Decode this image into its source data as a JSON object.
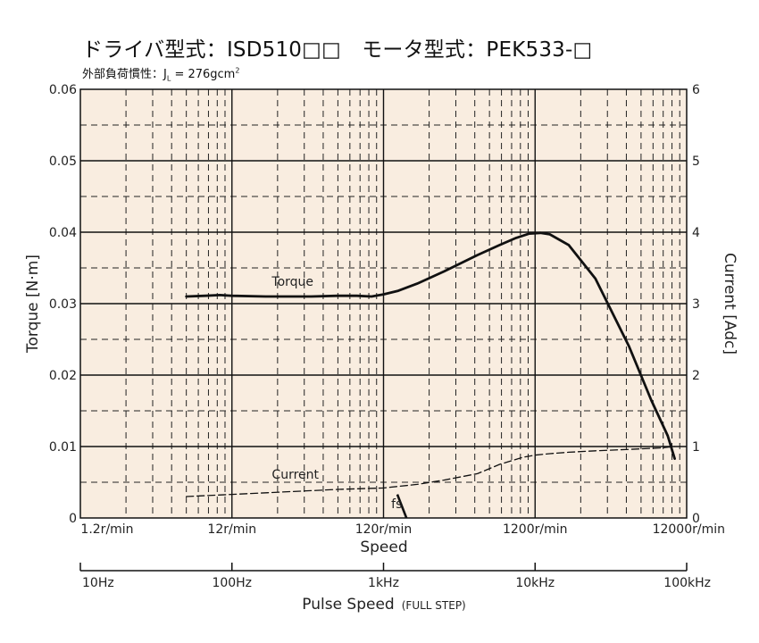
{
  "header": {
    "title": "ドライバ型式：ISD510□□　モータ型式：PEK533-□",
    "subtitle_prefix": "外部負荷慣性：J",
    "subtitle_sub": "L",
    "subtitle_value": " = 276gcm",
    "subtitle_sup": "2"
  },
  "chart_data": {
    "type": "line",
    "x_scale": "log",
    "xlabel": "Speed",
    "x_tick_labels": [
      "1.2r/min",
      "12r/min",
      "120r/min",
      "1200r/min",
      "12000r/min"
    ],
    "x_ticks": [
      1.2,
      12,
      120,
      1200,
      12000
    ],
    "xlim": [
      1.2,
      12000
    ],
    "ylabel": "Torque [N·m]",
    "ylim": [
      0,
      0.06
    ],
    "y_ticks": [
      0,
      0.01,
      0.02,
      0.03,
      0.04,
      0.05,
      0.06
    ],
    "y_tick_labels": [
      "0",
      "0.01",
      "0.02",
      "0.03",
      "0.04",
      "0.05",
      "0.06"
    ],
    "y2label": "Current [Adc]",
    "y2lim": [
      0,
      6
    ],
    "y2_ticks": [
      0,
      1,
      2,
      3,
      4,
      5,
      6
    ],
    "y2_tick_labels": [
      "0",
      "1",
      "2",
      "3",
      "4",
      "5",
      "6"
    ],
    "grid": true,
    "background": "#f9ede0",
    "series": [
      {
        "name": "Torque",
        "axis": "left",
        "style": "solid",
        "x": [
          6,
          8,
          10,
          12,
          20,
          40,
          60,
          80,
          100,
          120,
          150,
          200,
          300,
          500,
          700,
          900,
          1100,
          1300,
          1500,
          2000,
          3000,
          5000,
          7000,
          9000,
          10000
        ],
        "y": [
          0.031,
          0.0311,
          0.0312,
          0.0311,
          0.031,
          0.031,
          0.0311,
          0.0311,
          0.031,
          0.0313,
          0.0318,
          0.0328,
          0.0345,
          0.0368,
          0.0382,
          0.0392,
          0.0398,
          0.0399,
          0.0397,
          0.0382,
          0.0335,
          0.024,
          0.0165,
          0.0115,
          0.0083
        ]
      },
      {
        "name": "Current",
        "axis": "right",
        "style": "dashed",
        "x": [
          6,
          12,
          30,
          60,
          120,
          200,
          300,
          500,
          700,
          1000,
          1200,
          1500,
          2000,
          3000,
          5000,
          8000,
          10000
        ],
        "y": [
          0.3,
          0.33,
          0.37,
          0.4,
          0.42,
          0.47,
          0.53,
          0.62,
          0.75,
          0.85,
          0.88,
          0.9,
          0.92,
          0.94,
          0.96,
          0.98,
          1.0
        ]
      }
    ],
    "annotations": [
      {
        "text": "Torque",
        "x": 22,
        "y": 0.0325
      },
      {
        "text": "Current",
        "x": 22,
        "y": 0.0055
      },
      {
        "text": "fs",
        "x": 135,
        "y": 0.0014
      }
    ],
    "fs_marker": {
      "label": "fs",
      "x_top": 148,
      "x_bottom": 170,
      "y_top": 0.0033,
      "y_bottom": 0
    },
    "secondary_axis": {
      "label_main": "Pulse Speed",
      "label_note": "(FULL STEP)",
      "tick_labels": [
        "10Hz",
        "100Hz",
        "1kHz",
        "10kHz",
        "100kHz"
      ]
    }
  }
}
